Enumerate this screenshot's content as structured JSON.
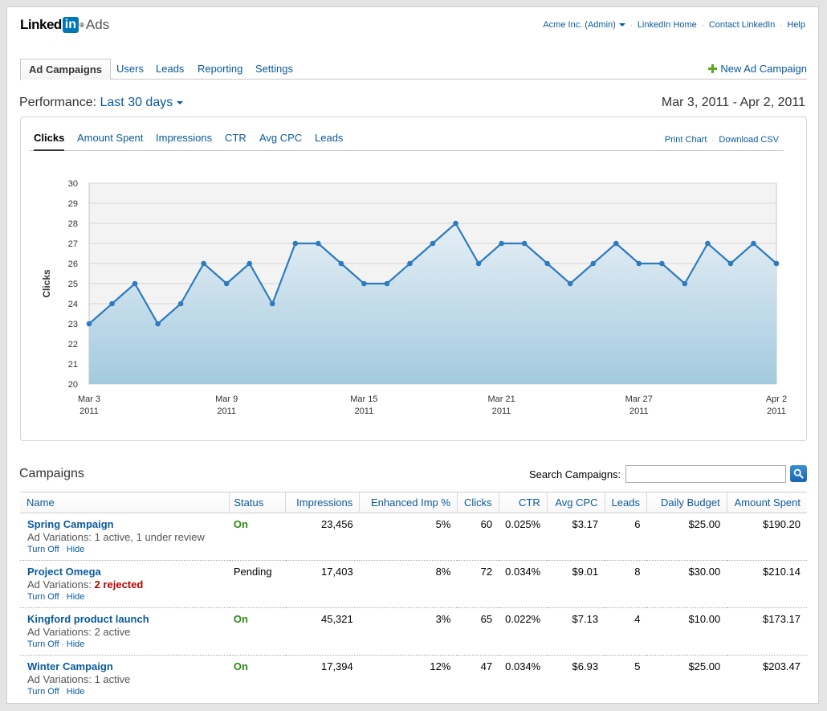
{
  "brand": {
    "linked": "Linked",
    "in": "in",
    "reg": "®",
    "product": "Ads"
  },
  "toplinks": {
    "account": "Acme Inc. (Admin)",
    "home": "LinkedIn Home",
    "contact": "Contact LinkedIn",
    "help": "Help",
    "sep": "·"
  },
  "tabs": [
    "Ad Campaigns",
    "Users",
    "Leads",
    "Reporting",
    "Settings"
  ],
  "new_campaign": "New Ad Campaign",
  "performance": {
    "label": "Performance:",
    "range": "Last 30 days",
    "dates": "Mar 3, 2011 - Apr 2, 2011"
  },
  "chart_tabs": [
    "Clicks",
    "Amount Spent",
    "Impressions",
    "CTR",
    "Avg CPC",
    "Leads"
  ],
  "chart_links": {
    "print": "Print Chart",
    "download": "Download CSV"
  },
  "chart_data": {
    "type": "area",
    "ylabel": "Clicks",
    "ylim": [
      20,
      30
    ],
    "yticks": [
      20,
      21,
      22,
      23,
      24,
      25,
      26,
      27,
      28,
      29,
      30
    ],
    "xticks": [
      {
        "day": 0,
        "label": "Mar 3",
        "year": "2011"
      },
      {
        "day": 6,
        "label": "Mar 9",
        "year": "2011"
      },
      {
        "day": 12,
        "label": "Mar 15",
        "year": "2011"
      },
      {
        "day": 18,
        "label": "Mar 21",
        "year": "2011"
      },
      {
        "day": 24,
        "label": "Mar 27",
        "year": "2011"
      },
      {
        "day": 30,
        "label": "Apr 2",
        "year": "2011"
      }
    ],
    "x": [
      "Mar 3",
      "Mar 4",
      "Mar 5",
      "Mar 6",
      "Mar 7",
      "Mar 8",
      "Mar 9",
      "Mar 10",
      "Mar 11",
      "Mar 12",
      "Mar 13",
      "Mar 14",
      "Mar 15",
      "Mar 16",
      "Mar 17",
      "Mar 18",
      "Mar 19",
      "Mar 20",
      "Mar 21",
      "Mar 22",
      "Mar 23",
      "Mar 24",
      "Mar 25",
      "Mar 26",
      "Mar 27",
      "Mar 28",
      "Mar 29",
      "Mar 30",
      "Mar 31",
      "Apr 1",
      "Apr 2"
    ],
    "values": [
      23,
      24,
      25,
      23,
      24,
      26,
      25,
      26,
      24,
      27,
      27,
      26,
      25,
      25,
      26,
      27,
      28,
      26,
      27,
      27,
      26,
      25,
      26,
      27,
      26,
      26,
      25,
      27,
      26,
      27,
      26
    ],
    "grid": true,
    "colors": {
      "line": "#2f7bbf",
      "fill_top": "#e6eff5",
      "fill_bottom": "#a3cadf",
      "plot_bg": "#f3f3f3"
    }
  },
  "campaigns": {
    "title": "Campaigns",
    "search_label": "Search Campaigns:",
    "search_value": "",
    "columns": [
      "Name",
      "Status",
      "Impressions",
      "Enhanced Imp %",
      "Clicks",
      "CTR",
      "Avg CPC",
      "Leads",
      "Daily Budget",
      "Amount Spent"
    ],
    "actions": {
      "turn_off": "Turn Off",
      "hide": "Hide",
      "sep": "·"
    },
    "rows": [
      {
        "name": "Spring Campaign",
        "variations": "Ad Variations: 1 active, 1 under review",
        "bad": "",
        "status": "On",
        "impressions": "23,456",
        "enhanced": "5%",
        "clicks": "60",
        "ctr": "0.025%",
        "avg_cpc": "$3.17",
        "leads": "6",
        "budget": "$25.00",
        "spent": "$190.20"
      },
      {
        "name": "Project Omega",
        "variations": "Ad Variations: ",
        "bad": "2 rejected",
        "status": "Pending",
        "impressions": "17,403",
        "enhanced": "8%",
        "clicks": "72",
        "ctr": "0.034%",
        "avg_cpc": "$9.01",
        "leads": "8",
        "budget": "$30.00",
        "spent": "$210.14"
      },
      {
        "name": "Kingford product launch",
        "variations": "Ad Variations: 2 active",
        "bad": "",
        "status": "On",
        "impressions": "45,321",
        "enhanced": "3%",
        "clicks": "65",
        "ctr": "0.022%",
        "avg_cpc": "$7.13",
        "leads": "4",
        "budget": "$10.00",
        "spent": "$173.17"
      },
      {
        "name": "Winter Campaign",
        "variations": "Ad Variations: 1 active",
        "bad": "",
        "status": "On",
        "impressions": "17,394",
        "enhanced": "12%",
        "clicks": "47",
        "ctr": "0.034%",
        "avg_cpc": "$6.93",
        "leads": "5",
        "budget": "$25.00",
        "spent": "$203.47"
      }
    ]
  }
}
